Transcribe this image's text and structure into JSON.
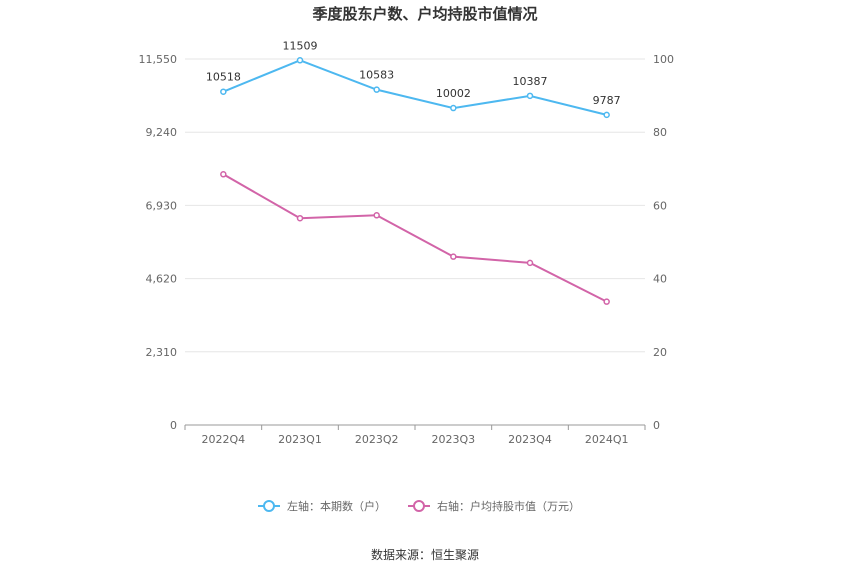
{
  "chart_data": {
    "type": "line",
    "title": "季度股东户数、户均持股市值情况",
    "categories": [
      "2022Q4",
      "2023Q1",
      "2023Q2",
      "2023Q3",
      "2023Q4",
      "2024Q1"
    ],
    "series": [
      {
        "name": "左轴：本期数（户）",
        "axis": "left",
        "color": "#4db8f0",
        "values": [
          10518,
          11509,
          10583,
          10002,
          10387,
          9787
        ],
        "show_labels": true
      },
      {
        "name": "右轴：户均持股市值（万元）",
        "axis": "right",
        "color": "#d264a8",
        "values": [
          68.5,
          56.5,
          57.3,
          46,
          44.3,
          33.7
        ],
        "show_labels": false
      }
    ],
    "y_left": {
      "min": 0,
      "max": 11550,
      "ticks": [
        "0",
        "2,310",
        "4,620",
        "6,930",
        "9,240",
        "11,550"
      ],
      "tick_values": [
        0,
        2310,
        4620,
        6930,
        9240,
        11550
      ]
    },
    "y_right": {
      "min": 0,
      "max": 100,
      "ticks": [
        "0",
        "20",
        "40",
        "60",
        "80",
        "100"
      ],
      "tick_values": [
        0,
        20,
        40,
        60,
        80,
        100
      ]
    },
    "grid": true,
    "legend_position": "bottom-center"
  },
  "source": "数据来源：恒生聚源"
}
